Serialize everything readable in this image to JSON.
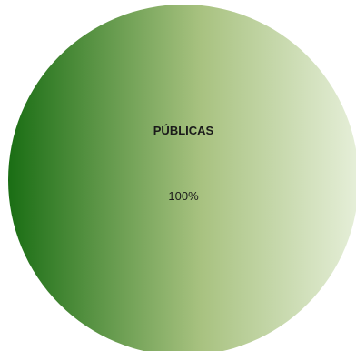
{
  "chart_data": {
    "type": "pie",
    "categories": [
      "PÚBLICAS"
    ],
    "values": [
      100
    ],
    "data_labels": [
      "100%"
    ],
    "title": "",
    "legend": "none",
    "colors": {
      "gradient_dark": "#1a6e14",
      "gradient_mid": "#a8c280",
      "gradient_light": "#e6efd9"
    }
  }
}
